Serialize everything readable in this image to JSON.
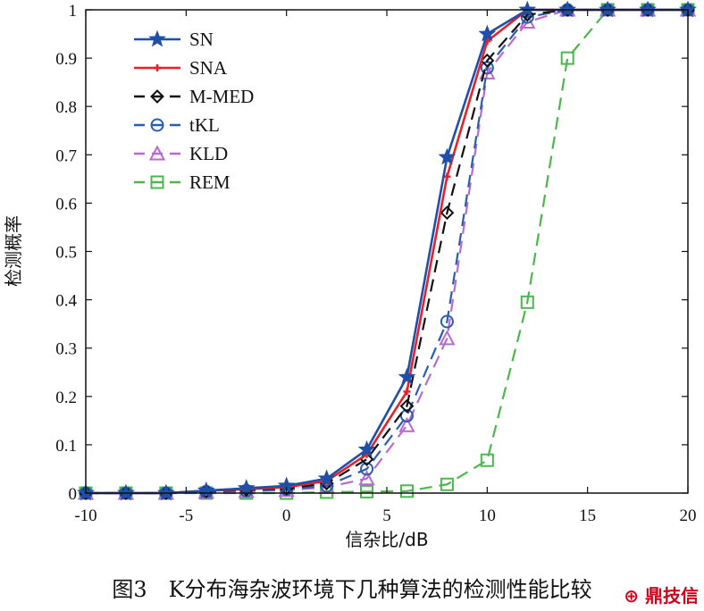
{
  "chart_data": {
    "type": "line",
    "xlabel": "信杂比/dB",
    "ylabel": "检测概率",
    "xlim": [
      -10,
      20
    ],
    "ylim": [
      0,
      1
    ],
    "xticks": [
      "-10",
      "-5",
      "0",
      "5",
      "10",
      "15",
      "20"
    ],
    "yticks": [
      "0",
      "0.1",
      "0.2",
      "0.3",
      "0.4",
      "0.5",
      "0.6",
      "0.7",
      "0.8",
      "0.9",
      "1"
    ],
    "grid": false,
    "legend_position": "top-left",
    "series": [
      {
        "name": "SN",
        "color": "#1f4fa8",
        "dash": "solid",
        "marker": "star",
        "x": [
          -10,
          -8,
          -6,
          -4,
          -2,
          0,
          2,
          4,
          6,
          8,
          10,
          12,
          14,
          16,
          18,
          20
        ],
        "y": [
          0,
          0,
          0,
          0.005,
          0.01,
          0.015,
          0.03,
          0.09,
          0.24,
          0.695,
          0.95,
          1,
          1,
          1,
          1,
          1
        ]
      },
      {
        "name": "SNA",
        "color": "#e8202a",
        "dash": "solid",
        "marker": "plus",
        "x": [
          -10,
          -8,
          -6,
          -4,
          -2,
          0,
          2,
          4,
          6,
          8,
          10,
          12,
          14,
          16,
          18,
          20
        ],
        "y": [
          0,
          0,
          0,
          0.005,
          0.008,
          0.012,
          0.025,
          0.08,
          0.21,
          0.655,
          0.935,
          1,
          1,
          1,
          1,
          1
        ]
      },
      {
        "name": "M-MED",
        "color": "#111111",
        "dash": "dash",
        "marker": "diamond",
        "x": [
          -10,
          -8,
          -6,
          -4,
          -2,
          0,
          2,
          4,
          6,
          8,
          10,
          12,
          14,
          16,
          18,
          20
        ],
        "y": [
          0,
          0,
          0,
          0.004,
          0.007,
          0.01,
          0.02,
          0.07,
          0.18,
          0.58,
          0.895,
          0.99,
          1,
          1,
          1,
          1
        ]
      },
      {
        "name": "tKL",
        "color": "#2a5db0",
        "dash": "dash",
        "marker": "circle",
        "x": [
          -10,
          -8,
          -6,
          -4,
          -2,
          0,
          2,
          4,
          6,
          8,
          10,
          12,
          14,
          16,
          18,
          20
        ],
        "y": [
          0,
          0,
          0,
          0.003,
          0.005,
          0.008,
          0.015,
          0.05,
          0.16,
          0.355,
          0.88,
          0.985,
          1,
          1,
          1,
          1
        ]
      },
      {
        "name": "KLD",
        "color": "#b86ad0",
        "dash": "dash",
        "marker": "triangle",
        "x": [
          -10,
          -8,
          -6,
          -4,
          -2,
          0,
          2,
          4,
          6,
          8,
          10,
          12,
          14,
          16,
          18,
          20
        ],
        "y": [
          0,
          0,
          0,
          0.002,
          0.004,
          0.006,
          0.012,
          0.03,
          0.14,
          0.32,
          0.87,
          0.975,
          1,
          1,
          1,
          1
        ]
      },
      {
        "name": "REM",
        "color": "#4ab84a",
        "dash": "dash",
        "marker": "square",
        "x": [
          -10,
          -8,
          -6,
          -4,
          -2,
          0,
          2,
          4,
          6,
          8,
          10,
          12,
          14,
          16,
          18,
          20
        ],
        "y": [
          0,
          0,
          0,
          0,
          0,
          0,
          0.002,
          0.003,
          0.004,
          0.018,
          0.068,
          0.395,
          0.9,
          1,
          1,
          1
        ]
      }
    ]
  },
  "caption": "图3　K分布海杂波环境下几种算法的检测性能比较",
  "watermark": "⊕ 鼎技信"
}
